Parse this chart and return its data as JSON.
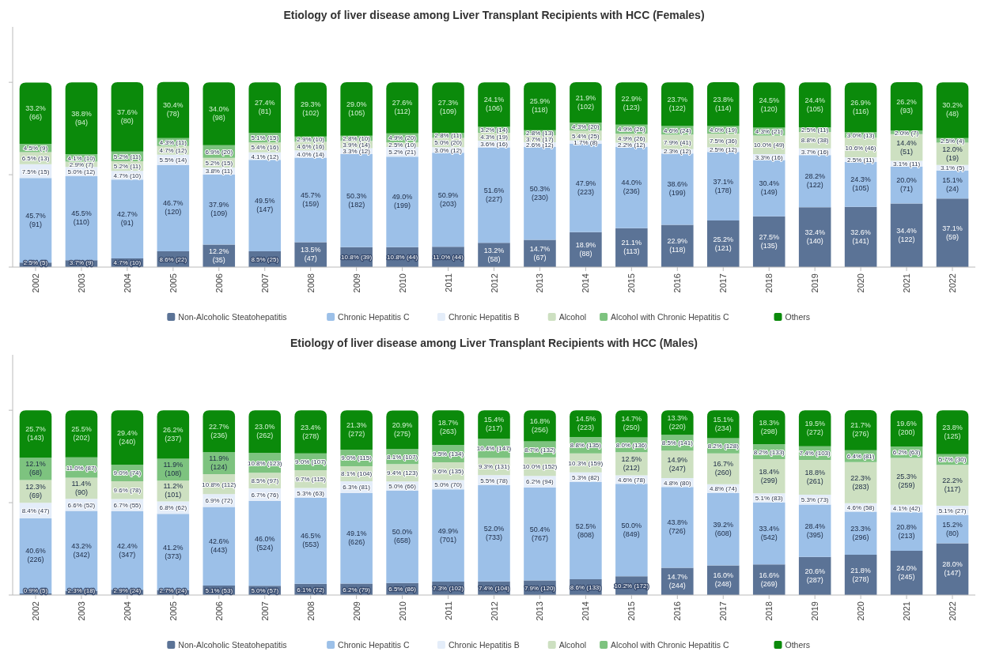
{
  "chart_data": [
    {
      "type": "bar",
      "stacked": true,
      "title": "Etiology of liver disease among Liver Transplant Recipients with HCC (Females)",
      "categories": [
        "2002",
        "2003",
        "2004",
        "2005",
        "2006",
        "2007",
        "2008",
        "2009",
        "2010",
        "2011",
        "2012",
        "2013",
        "2014",
        "2015",
        "2016",
        "2017",
        "2018",
        "2019",
        "2020",
        "2021",
        "2022"
      ],
      "ylim": [
        0,
        130
      ],
      "yticks": [
        {
          "value": 0,
          "label": null
        },
        {
          "value": 50,
          "label": null
        },
        {
          "value": 100,
          "label": null
        }
      ],
      "tick_labels": "x",
      "grid": false,
      "legend": "bottom",
      "series": [
        {
          "name": "Non-Alcoholic Steatohepatitis",
          "color": "#5b7396",
          "values": [
            2.5,
            3.7,
            4.7,
            8.6,
            12.2,
            8.5,
            13.5,
            10.8,
            10.8,
            11.0,
            13.2,
            14.7,
            18.9,
            21.1,
            22.9,
            25.2,
            27.5,
            32.4,
            32.6,
            34.4,
            37.1
          ],
          "value_labels": [
            "2.5% (5)",
            "3.7% (9)",
            "4.7% (10)",
            "8.6% (22)",
            "12.2% (35)",
            "8.5% (25)",
            "13.5% (47)",
            "10.8% (39)",
            "10.8% (44)",
            "11.0% (44)",
            "13.2% (58)",
            "14.7% (67)",
            "18.9% (88)",
            "21.1% (113)",
            "22.9% (118)",
            "25.2% (121)",
            "27.5% (135)",
            "32.4% (140)",
            "32.6% (141)",
            "34.4% (122)",
            "37.1% (59)"
          ]
        },
        {
          "name": "Chronic Hepatitis C",
          "color": "#9cc0e8",
          "values": [
            45.7,
            45.5,
            42.7,
            46.7,
            37.9,
            49.5,
            45.7,
            50.3,
            49.0,
            50.9,
            51.6,
            50.3,
            47.9,
            44.0,
            38.6,
            37.1,
            30.4,
            28.2,
            24.3,
            20.0,
            15.1
          ],
          "value_labels": [
            "45.7% (91)",
            "45.5% (110)",
            "42.7% (91)",
            "46.7% (120)",
            "37.9% (109)",
            "49.5% (147)",
            "45.7% (159)",
            "50.3% (182)",
            "49.0% (199)",
            "50.9% (203)",
            "51.6% (227)",
            "50.3% (230)",
            "47.9% (223)",
            "44.0% (236)",
            "38.6% (199)",
            "37.1% (178)",
            "30.4% (149)",
            "28.2% (122)",
            "24.3% (105)",
            "20.0% (71)",
            "15.1% (24)"
          ]
        },
        {
          "name": "Chronic Hepatitis B",
          "color": "#e4edf9",
          "values": [
            7.5,
            5.0,
            4.7,
            5.5,
            3.8,
            4.1,
            4.0,
            3.3,
            5.2,
            3.0,
            3.6,
            2.6,
            1.7,
            2.2,
            2.3,
            2.5,
            3.3,
            3.7,
            2.5,
            3.1,
            3.1
          ],
          "value_labels": [
            "7.5% (15)",
            "5.0% (12)",
            "4.7% (10)",
            "5.5% (14)",
            "3.8% (11)",
            "4.1% (12)",
            "4.0% (14)",
            "3.3% (12)",
            "5.2% (21)",
            "3.0% (12)",
            "3.6% (16)",
            "2.6% (12)",
            "1.7% (8)",
            "2.2% (12)",
            "2.3% (12)",
            "2.5% (12)",
            "3.3% (16)",
            "3.7% (16)",
            "2.5% (11)",
            "3.1% (11)",
            "3.1% (5)"
          ]
        },
        {
          "name": "Alcohol",
          "color": "#cde0c1",
          "values": [
            6.5,
            2.9,
            5.2,
            4.7,
            5.2,
            5.4,
            4.6,
            3.9,
            2.5,
            5.0,
            4.3,
            3.7,
            5.4,
            4.9,
            7.9,
            7.5,
            10.0,
            8.8,
            10.6,
            14.4,
            12.0
          ],
          "value_labels": [
            "6.5% (13)",
            "2.9% (7)",
            "5.2% (11)",
            "4.7% (12)",
            "5.2% (15)",
            "5.4% (16)",
            "4.6% (16)",
            "3.9% (14)",
            "2.5% (10)",
            "5.0% (20)",
            "4.3% (19)",
            "3.7% (17)",
            "5.4% (25)",
            "4.9% (26)",
            "7.9% (41)",
            "7.5% (36)",
            "10.0% (49)",
            "8.8% (38)",
            "10.6% (46)",
            "14.4% (51)",
            "12.0% (19)"
          ]
        },
        {
          "name": "Alcohol with Chronic Hepatitis C",
          "color": "#7dc37f",
          "values": [
            4.5,
            4.1,
            5.2,
            4.3,
            6.9,
            5.1,
            2.9,
            2.8,
            4.9,
            2.8,
            3.2,
            2.8,
            4.3,
            4.9,
            4.6,
            4.0,
            4.3,
            2.5,
            3.0,
            2.0,
            2.5
          ],
          "value_labels": [
            "4.5% (9)",
            "4.1% (10)",
            "5.2% (11)",
            "4.3% (11)",
            "6.9% (20)",
            "5.1% (15)",
            "2.9% (10)",
            "2.8% (10)",
            "4.9% (20)",
            "2.8% (11)",
            "3.2% (14)",
            "2.8% (13)",
            "4.3% (20)",
            "4.9% (26)",
            "4.6% (24)",
            "4.0% (19)",
            "4.3% (21)",
            "2.5% (11)",
            "3.0% (13)",
            "2.0% (7)",
            "2.5% (4)"
          ]
        },
        {
          "name": "Others",
          "color": "#0b8a0b",
          "values": [
            33.2,
            38.8,
            37.6,
            30.4,
            34.0,
            27.4,
            29.3,
            29.0,
            27.6,
            27.3,
            24.1,
            25.9,
            21.9,
            22.9,
            23.7,
            23.8,
            24.5,
            24.4,
            26.9,
            26.2,
            30.2
          ],
          "value_labels": [
            "33.2% (66)",
            "38.8% (94)",
            "37.6% (80)",
            "30.4% (78)",
            "34.0% (98)",
            "27.4% (81)",
            "29.3% (102)",
            "29.0% (105)",
            "27.6% (112)",
            "27.3% (109)",
            "24.1% (106)",
            "25.9% (118)",
            "21.9% (102)",
            "22.9% (123)",
            "23.7% (122)",
            "23.8% (114)",
            "24.5% (120)",
            "24.4% (105)",
            "26.9% (116)",
            "26.2% (93)",
            "30.2% (48)"
          ]
        }
      ]
    },
    {
      "type": "bar",
      "stacked": true,
      "title": "Etiology of liver disease among Liver Transplant Recipients with HCC (Males)",
      "categories": [
        "2002",
        "2003",
        "2004",
        "2005",
        "2006",
        "2007",
        "2008",
        "2009",
        "2010",
        "2011",
        "2012",
        "2013",
        "2014",
        "2015",
        "2016",
        "2017",
        "2018",
        "2019",
        "2020",
        "2021",
        "2022"
      ],
      "ylim": [
        0,
        130
      ],
      "yticks": [
        {
          "value": 0,
          "label": null
        },
        {
          "value": 50,
          "label": null
        },
        {
          "value": 100,
          "label": null
        }
      ],
      "tick_labels": "x",
      "grid": false,
      "legend": "bottom",
      "series": [
        {
          "name": "Non-Alcoholic Steatohepatitis",
          "color": "#5b7396",
          "values": [
            0.9,
            2.3,
            2.9,
            2.7,
            5.1,
            5.0,
            6.1,
            6.2,
            6.5,
            7.3,
            7.4,
            7.9,
            8.6,
            10.2,
            14.7,
            16.0,
            16.6,
            20.6,
            21.8,
            24.0,
            28.0
          ],
          "value_labels": [
            "0.9% (5)",
            "2.3% (18)",
            "2.9% (24)",
            "2.7% (24)",
            "5.1% (53)",
            "5.0% (57)",
            "6.1% (72)",
            "6.2% (79)",
            "6.5% (86)",
            "7.3% (102)",
            "7.4% (104)",
            "7.9% (120)",
            "8.6% (133)",
            "10.2% (172)",
            "14.7% (244)",
            "16.0% (248)",
            "16.6% (269)",
            "20.6% (287)",
            "21.8% (278)",
            "24.0% (245)",
            "28.0% (147)"
          ]
        },
        {
          "name": "Chronic Hepatitis C",
          "color": "#9cc0e8",
          "values": [
            40.6,
            43.2,
            42.4,
            41.2,
            42.6,
            46.0,
            46.5,
            49.1,
            50.0,
            49.9,
            52.0,
            50.4,
            52.5,
            50.0,
            43.8,
            39.2,
            33.4,
            28.4,
            23.3,
            20.8,
            15.2
          ],
          "value_labels": [
            "40.6% (226)",
            "43.2% (342)",
            "42.4% (347)",
            "41.2% (373)",
            "42.6% (443)",
            "46.0% (524)",
            "46.5% (553)",
            "49.1% (626)",
            "50.0% (658)",
            "49.9% (701)",
            "52.0% (733)",
            "50.4% (767)",
            "52.5% (808)",
            "50.0% (849)",
            "43.8% (726)",
            "39.2% (608)",
            "33.4% (542)",
            "28.4% (395)",
            "23.3% (296)",
            "20.8% (213)",
            "15.2% (80)"
          ]
        },
        {
          "name": "Chronic Hepatitis B",
          "color": "#e4edf9",
          "values": [
            8.4,
            6.6,
            6.7,
            6.8,
            6.9,
            6.7,
            5.3,
            6.3,
            5.0,
            5.0,
            5.5,
            6.2,
            5.3,
            4.6,
            4.8,
            4.8,
            5.1,
            5.3,
            4.6,
            4.1,
            5.1
          ],
          "value_labels": [
            "8.4% (47)",
            "6.6% (52)",
            "6.7% (55)",
            "6.8% (62)",
            "6.9% (72)",
            "6.7% (76)",
            "5.3% (63)",
            "6.3% (81)",
            "5.0% (66)",
            "5.0% (70)",
            "5.5% (78)",
            "6.2% (94)",
            "5.3% (82)",
            "4.6% (78)",
            "4.8% (80)",
            "4.8% (74)",
            "5.1% (83)",
            "5.3% (73)",
            "4.6% (58)",
            "4.1% (42)",
            "5.1% (27)"
          ]
        },
        {
          "name": "Alcohol",
          "color": "#cde0c1",
          "values": [
            12.3,
            11.4,
            9.6,
            11.2,
            10.8,
            8.5,
            9.7,
            8.1,
            9.4,
            9.6,
            9.3,
            10.0,
            10.3,
            12.5,
            14.9,
            16.7,
            18.4,
            18.8,
            22.3,
            25.3,
            22.2
          ],
          "value_labels": [
            "12.3% (69)",
            "11.4% (90)",
            "9.6% (78)",
            "11.2% (101)",
            "10.8% (112)",
            "8.5% (97)",
            "9.7% (115)",
            "8.1% (104)",
            "9.4% (123)",
            "9.6% (135)",
            "9.3% (131)",
            "10.0% (152)",
            "10.3% (159)",
            "12.5% (212)",
            "14.9% (247)",
            "16.7% (260)",
            "18.4% (299)",
            "18.8% (261)",
            "22.3% (283)",
            "25.3% (259)",
            "22.2% (117)"
          ]
        },
        {
          "name": "Alcohol with Chronic Hepatitis C",
          "color": "#7dc37f",
          "values": [
            12.1,
            11.0,
            9.0,
            11.9,
            11.9,
            10.8,
            9.0,
            9.0,
            8.1,
            9.5,
            10.4,
            8.7,
            8.8,
            8.0,
            8.5,
            8.2,
            8.2,
            7.4,
            6.4,
            6.2,
            5.7
          ],
          "value_labels": [
            "12.1% (68)",
            "11.0% (87)",
            "9.0% (74)",
            "11.9% (108)",
            "11.9% (124)",
            "10.8% (123)",
            "9.0% (107)",
            "9.0% (115)",
            "8.1% (107)",
            "9.5% (134)",
            "10.4% (147)",
            "8.7% (132)",
            "8.8% (135)",
            "8.0% (136)",
            "8.5% (141)",
            "8.2% (128)",
            "8.2% (133)",
            "7.4% (103)",
            "6.4% (81)",
            "6.2% (63)",
            "5.7% (30)"
          ]
        },
        {
          "name": "Others",
          "color": "#0b8a0b",
          "values": [
            25.7,
            25.5,
            29.4,
            26.2,
            22.7,
            23.0,
            23.4,
            21.3,
            20.9,
            18.7,
            15.4,
            16.8,
            14.5,
            14.7,
            13.3,
            15.1,
            18.3,
            19.5,
            21.7,
            19.6,
            23.8
          ],
          "value_labels": [
            "25.7% (143)",
            "25.5% (202)",
            "29.4% (240)",
            "26.2% (237)",
            "22.7% (236)",
            "23.0% (262)",
            "23.4% (278)",
            "21.3% (272)",
            "20.9% (275)",
            "18.7% (263)",
            "15.4% (217)",
            "16.8% (256)",
            "14.5% (223)",
            "14.7% (250)",
            "13.3% (220)",
            "15.1% (234)",
            "18.3% (298)",
            "19.5% (272)",
            "21.7% (276)",
            "19.6% (200)",
            "23.8% (125)"
          ]
        }
      ]
    }
  ]
}
